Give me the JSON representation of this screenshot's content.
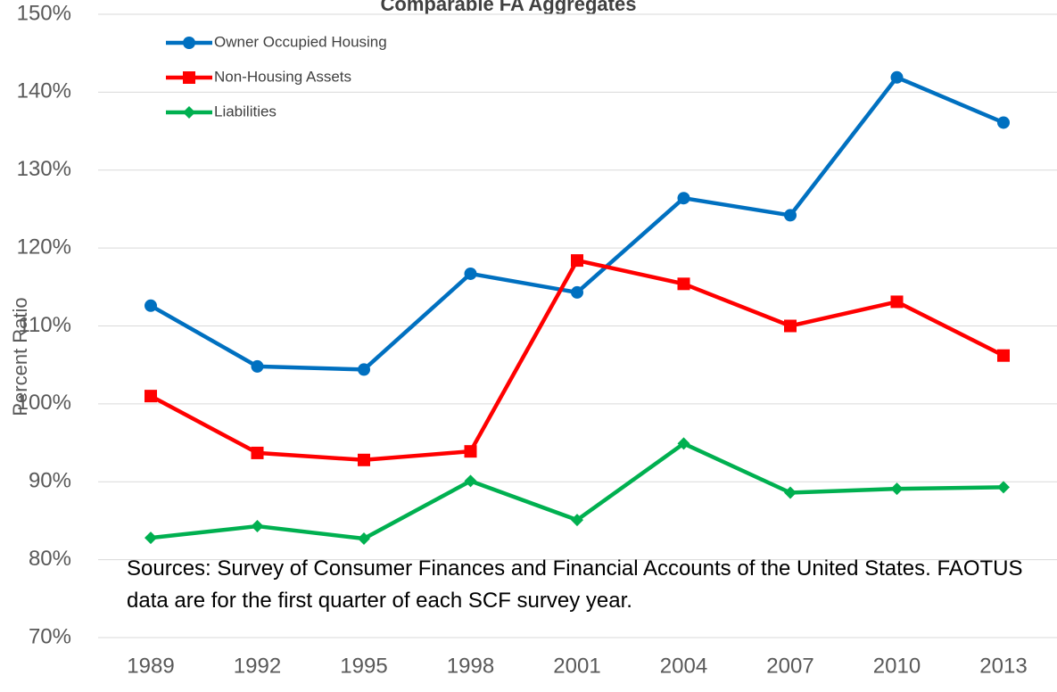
{
  "chart_data": {
    "type": "line",
    "title": "Comparable FA Aggregates",
    "y_label": "Percent Ratio",
    "annotation": "Sources: Survey of Consumer Finances and Financial Accounts of the United States. FAOTUS data are for the first quarter of each SCF survey year.",
    "categories": [
      "1989",
      "1992",
      "1995",
      "1998",
      "2001",
      "2004",
      "2007",
      "2010",
      "2013"
    ],
    "series": [
      {
        "name": "Owner Occupied Housing",
        "color": "#0070c0",
        "marker": "circle",
        "values": [
          112.6,
          104.8,
          104.4,
          116.7,
          114.3,
          126.4,
          124.2,
          141.9,
          136.1
        ]
      },
      {
        "name": "Non-Housing Assets",
        "color": "#ff0000",
        "marker": "square",
        "values": [
          101.0,
          93.7,
          92.8,
          93.9,
          118.4,
          115.4,
          110.0,
          113.1,
          106.2
        ]
      },
      {
        "name": "Liabilities",
        "color": "#00b050",
        "marker": "diamond",
        "values": [
          82.8,
          84.3,
          82.7,
          90.1,
          85.1,
          94.9,
          88.6,
          89.1,
          89.3
        ]
      }
    ],
    "ylim": [
      70,
      150
    ],
    "yticks": [
      {
        "value": 70,
        "label": "70%"
      },
      {
        "value": 80,
        "label": "80%"
      },
      {
        "value": 90,
        "label": "90%"
      },
      {
        "value": 100,
        "label": "100%"
      },
      {
        "value": 110,
        "label": "110%"
      },
      {
        "value": 120,
        "label": "120%"
      },
      {
        "value": 130,
        "label": "130%"
      },
      {
        "value": 140,
        "label": "140%"
      },
      {
        "value": 150,
        "label": "150%"
      }
    ],
    "grid": true,
    "legend": "top-left"
  }
}
